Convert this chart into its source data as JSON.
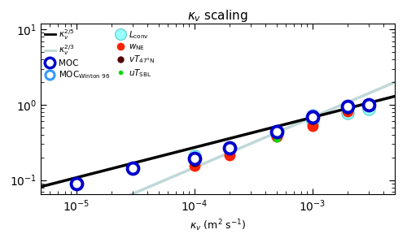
{
  "title": "$\\kappa_v$ scaling",
  "xlabel": "$\\kappa_v$ (m$^2$ s$^{-1}$)",
  "xlim": [
    5e-06,
    0.005
  ],
  "ylim": [
    0.065,
    12
  ],
  "MOC_kv": [
    1e-05,
    3e-05,
    0.0001,
    0.0002,
    0.0005,
    0.001,
    0.002,
    0.003
  ],
  "MOC_val": [
    0.09,
    0.145,
    0.195,
    0.265,
    0.44,
    0.68,
    0.95,
    1.0
  ],
  "MOC_winton_kv": [
    0.0001,
    0.001,
    0.003
  ],
  "MOC_winton_val": [
    0.195,
    0.72,
    1.0
  ],
  "Lconv_kv": [
    0.0001,
    0.0002,
    0.0005,
    0.001,
    0.002,
    0.003
  ],
  "Lconv_val": [
    0.21,
    0.27,
    0.41,
    0.6,
    0.77,
    0.88
  ],
  "wNE_kv": [
    0.0001,
    0.0002,
    0.0005,
    0.001,
    0.002,
    0.003
  ],
  "wNE_val": [
    0.155,
    0.215,
    0.38,
    0.52,
    0.82,
    1.0
  ],
  "vT47_kv": [
    0.0001,
    0.0002,
    0.0005,
    0.001,
    0.002,
    0.003
  ],
  "vT47_val": [
    0.175,
    0.26,
    0.44,
    0.64,
    0.88,
    1.0
  ],
  "uTSBL_kv": [
    0.0001,
    0.0002,
    0.0005,
    0.001,
    0.002,
    0.003
  ],
  "uTSBL_val": [
    0.175,
    0.255,
    0.35,
    0.64,
    0.9,
    1.0
  ],
  "ref_kv": 0.001,
  "ref_val_25": 0.68,
  "ref_val_23": 0.68,
  "background": "#ffffff",
  "MOC_color": "#0000cc",
  "MOC_winton_color": "#3399ff",
  "Lconv_color": "#99ffff",
  "wNE_color": "#ff2200",
  "vT47_color": "#550000",
  "uTSBL_color": "#00dd00",
  "line25_color": "#000000",
  "line23_color": "#c0d8d8"
}
